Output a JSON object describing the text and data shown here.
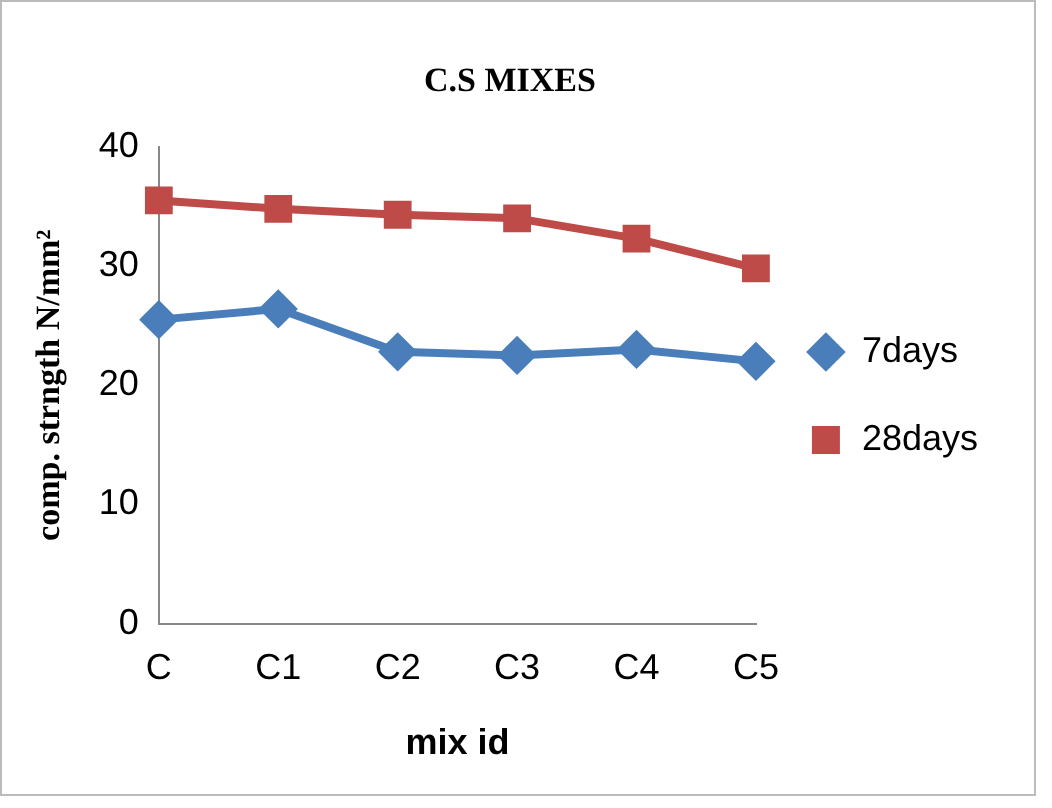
{
  "chart_data": {
    "type": "line",
    "title": "C.S MIXES",
    "xlabel": "mix id",
    "ylabel": "comp. strngth N/mm²",
    "categories": [
      "C",
      "C1",
      "C2",
      "C3",
      "C4",
      "C5"
    ],
    "series": [
      {
        "name": "7days",
        "color": "#4a7ebb",
        "marker": "diamond",
        "values": [
          25.5,
          26.4,
          22.8,
          22.5,
          23,
          22
        ]
      },
      {
        "name": "28days",
        "color": "#be4b48",
        "marker": "square",
        "values": [
          35.5,
          34.8,
          34.3,
          34,
          32.3,
          29.8
        ]
      }
    ],
    "ylim": [
      0,
      40
    ],
    "yticks": [
      0,
      10,
      20,
      30,
      40
    ],
    "grid": false,
    "legend": "right",
    "line_style": "solid"
  }
}
